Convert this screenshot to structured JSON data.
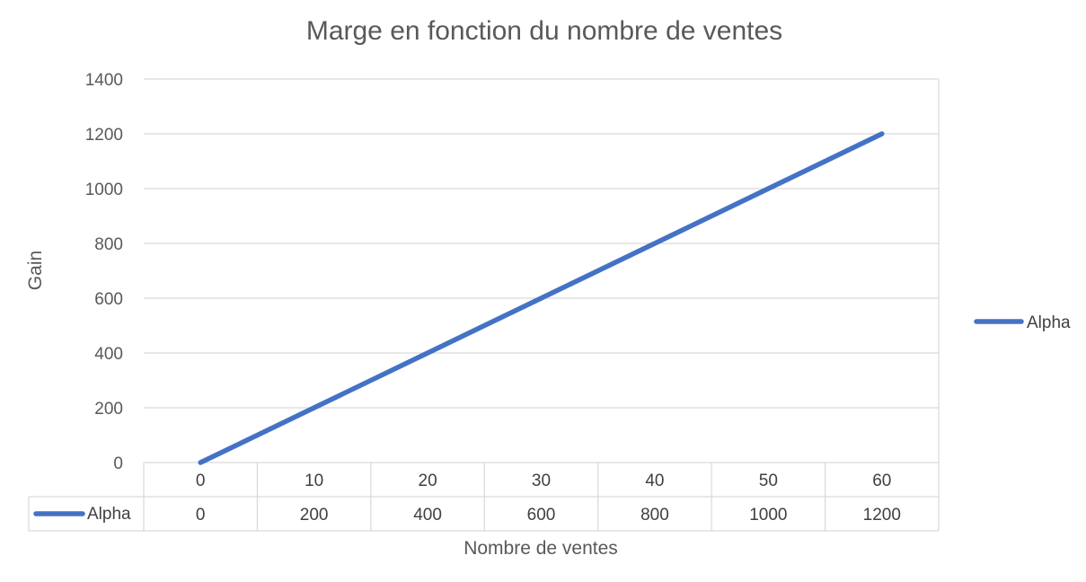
{
  "chart_data": {
    "type": "line",
    "title": "Marge en fonction du nombre de ventes",
    "xlabel": "Nombre de ventes",
    "ylabel": "Gain",
    "categories": [
      "0",
      "10",
      "20",
      "30",
      "40",
      "50",
      "60"
    ],
    "series": [
      {
        "name": "Alpha",
        "values": [
          0,
          200,
          400,
          600,
          800,
          1000,
          1200
        ],
        "value_labels": [
          "0",
          "200",
          "400",
          "600",
          "800",
          "1000",
          "1200"
        ],
        "color": "#4472C4"
      }
    ],
    "ylim": [
      0,
      1400
    ],
    "yticks": [
      "0",
      "200",
      "400",
      "600",
      "800",
      "1000",
      "1200",
      "1400"
    ],
    "grid": true,
    "legend_position": "right",
    "data_table": true
  }
}
